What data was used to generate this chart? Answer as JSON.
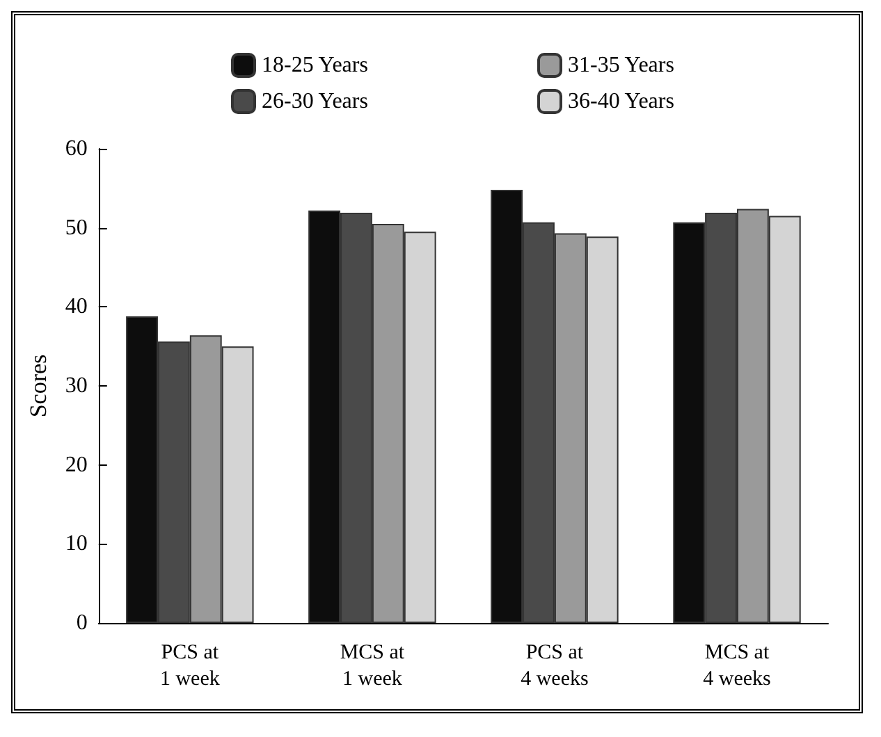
{
  "chart_data": {
    "type": "bar",
    "ylabel": "Scores",
    "categories": [
      "PCS at\n1 week",
      "MCS at\n1 week",
      "PCS at\n4 weeks",
      "MCS at\n4 weeks"
    ],
    "series": [
      {
        "name": "18-25 Years",
        "color": "#0d0d0d",
        "values": [
          38.8,
          52.2,
          54.8,
          50.7
        ]
      },
      {
        "name": "26-30 Years",
        "color": "#4a4a4a",
        "values": [
          35.6,
          51.9,
          50.7,
          51.9
        ]
      },
      {
        "name": "31-35 Years",
        "color": "#9a9a9a",
        "values": [
          36.4,
          50.5,
          49.3,
          52.4
        ]
      },
      {
        "name": "36-40 Years",
        "color": "#d4d4d4",
        "values": [
          35.0,
          49.5,
          48.9,
          51.5
        ]
      }
    ],
    "ylim": [
      0,
      60
    ],
    "yticks": [
      0,
      10,
      20,
      30,
      40,
      50,
      60
    ],
    "grid": false,
    "legend": "top"
  }
}
